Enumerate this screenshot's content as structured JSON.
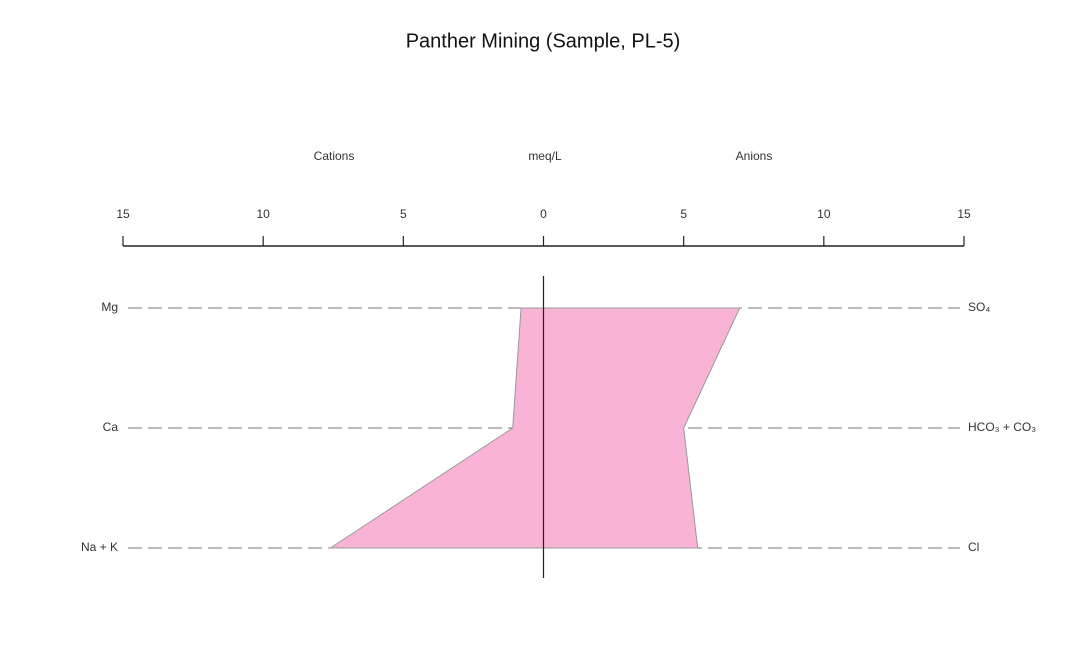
{
  "chart_data": {
    "type": "stiff",
    "title": "Panther Mining (Sample, PL-5)",
    "left_label": "Cations",
    "center_label": "meq/L",
    "right_label": "Anions",
    "xlim": [
      -15,
      15
    ],
    "xticks": [
      {
        "value": -15,
        "label": "15"
      },
      {
        "value": -10,
        "label": "10"
      },
      {
        "value": -5,
        "label": "5"
      },
      0,
      5,
      10,
      15
    ],
    "cations": {
      "categories": [
        "Mg",
        "Ca",
        "Na + K"
      ],
      "values": [
        0.8,
        1.1,
        7.6
      ]
    },
    "anions": {
      "categories": [
        "SO₄",
        "HCO₃ + CO₃",
        "Cl"
      ],
      "values": [
        7.0,
        5.0,
        5.5
      ]
    },
    "color": "#f9b3d6"
  }
}
